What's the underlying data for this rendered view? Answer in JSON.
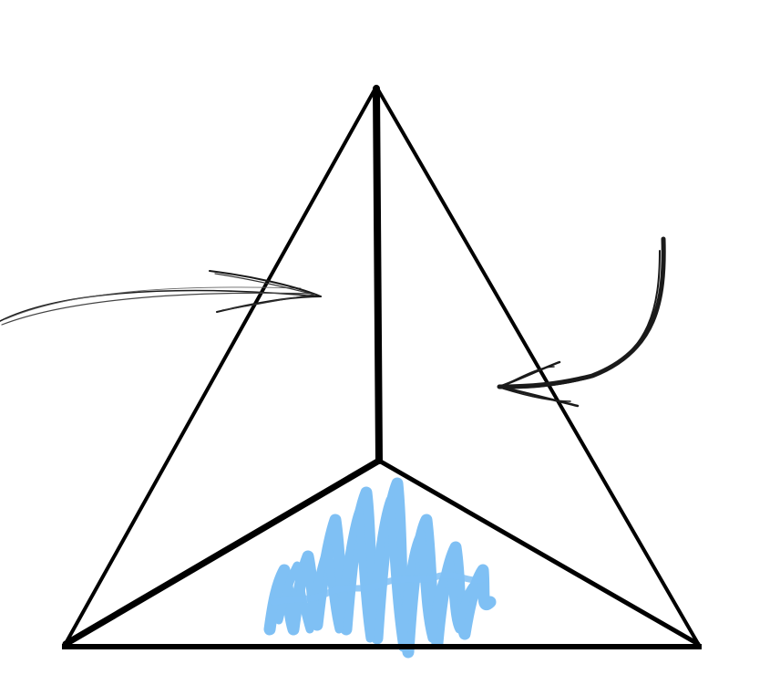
{
  "diagram": {
    "colors": {
      "background": "#ffffff",
      "stroke": "#000000",
      "scribble": "#7fc0f4",
      "arrow": "#1a1a1a"
    },
    "elements": [
      {
        "name": "triangle-outline",
        "kind": "outline"
      },
      {
        "name": "apex-to-center-edge",
        "kind": "edge"
      },
      {
        "name": "center-to-left-edge",
        "kind": "edge"
      },
      {
        "name": "center-to-right-edge",
        "kind": "edge"
      },
      {
        "name": "bottom-face-shading",
        "kind": "scribble"
      },
      {
        "name": "left-pointing-arrow",
        "kind": "arrow"
      },
      {
        "name": "right-pointing-arrow",
        "kind": "arrow"
      }
    ]
  }
}
